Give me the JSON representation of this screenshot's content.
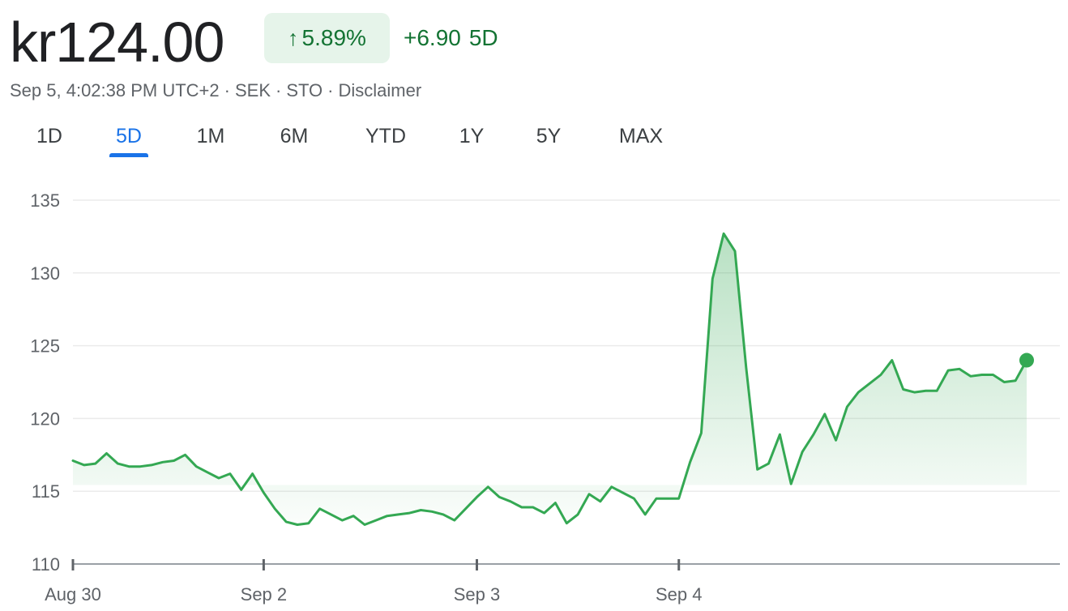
{
  "quote": {
    "price": "kr124.00",
    "change_arrow": "↑",
    "change_pct": "5.89%",
    "change_abs": "+6.90",
    "change_period": "5D",
    "timestamp": "Sep 5, 4:02:38 PM UTC+2",
    "currency": "SEK",
    "exchange": "STO",
    "disclaimer": "Disclaimer",
    "separator": "·"
  },
  "tabs": [
    {
      "label": "1D",
      "active": false
    },
    {
      "label": "5D",
      "active": true
    },
    {
      "label": "1M",
      "active": false
    },
    {
      "label": "6M",
      "active": false
    },
    {
      "label": "YTD",
      "active": false
    },
    {
      "label": "1Y",
      "active": false
    },
    {
      "label": "5Y",
      "active": false
    },
    {
      "label": "MAX",
      "active": false
    }
  ],
  "colors": {
    "up": "#137333",
    "line": "#34a853",
    "active_tab": "#1a73e8",
    "grid": "#ebebeb",
    "axis_text": "#5f6368"
  },
  "chart_data": {
    "type": "area",
    "title": "",
    "xlabel": "",
    "ylabel": "",
    "ylim": [
      110,
      135
    ],
    "yticks": [
      110,
      115,
      120,
      125,
      130,
      135
    ],
    "grid": true,
    "x_ticks": [
      {
        "label": "Aug 30",
        "index": 0
      },
      {
        "label": "Sep 2",
        "index": 17
      },
      {
        "label": "Sep 3",
        "index": 36
      },
      {
        "label": "Sep 4",
        "index": 54
      }
    ],
    "n_points": 86,
    "series": [
      {
        "values": [
          117.1,
          116.8,
          116.9,
          117.6,
          116.9,
          116.7,
          116.7,
          116.8,
          117.0,
          117.1,
          117.5,
          116.7,
          116.3,
          115.9,
          116.2,
          115.1,
          116.2,
          114.9,
          113.8,
          112.9,
          112.7,
          112.8,
          113.8,
          113.4,
          113.0,
          113.3,
          112.7,
          113.0,
          113.3,
          113.4,
          113.5,
          113.7,
          113.6,
          113.4,
          113.0,
          113.8,
          114.6,
          115.3,
          114.6,
          114.3,
          113.9,
          113.9,
          113.5,
          114.2,
          112.8,
          113.4,
          114.8,
          114.3,
          115.3,
          114.9,
          114.5,
          113.4,
          114.5,
          114.5,
          114.5,
          117.0,
          119.0,
          129.6,
          132.7,
          131.5,
          123.5,
          116.5,
          116.9,
          118.9,
          115.5,
          117.7,
          118.9,
          120.3,
          118.5,
          120.8,
          121.8,
          122.4,
          123.0,
          124.0,
          122.0,
          121.8,
          121.9,
          121.9,
          123.3,
          123.4,
          122.9,
          123.0,
          123.0,
          122.5,
          122.6,
          124.0
        ]
      }
    ],
    "last_value": 124.0
  }
}
